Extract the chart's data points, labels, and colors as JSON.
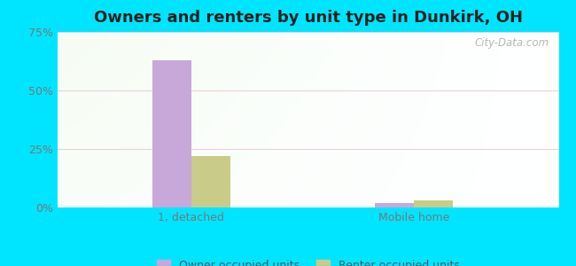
{
  "title": "Owners and renters by unit type in Dunkirk, OH",
  "categories": [
    "1, detached",
    "Mobile home"
  ],
  "owner_values": [
    63.0,
    2.0
  ],
  "renter_values": [
    22.0,
    3.0
  ],
  "owner_color": "#c8a8d8",
  "renter_color": "#c8cc88",
  "ylim": [
    0,
    75
  ],
  "yticks": [
    0,
    25,
    50,
    75
  ],
  "ytick_labels": [
    "0%",
    "25%",
    "50%",
    "75%"
  ],
  "legend_owner": "Owner occupied units",
  "legend_renter": "Renter occupied units",
  "background_outer": "#00e5ff",
  "watermark": "City-Data.com",
  "bar_width": 0.35,
  "group_positions": [
    1.2,
    3.2
  ],
  "xlim": [
    0,
    4.5
  ]
}
